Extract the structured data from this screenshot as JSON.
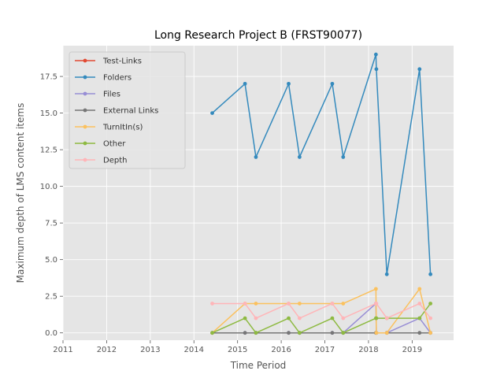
{
  "chart_data": {
    "type": "line",
    "title": "Long Research Project B (FRST90077)",
    "xlabel": "Time Period",
    "ylabel": "Maximum depth of LMS content items",
    "xlim": [
      2011,
      2019.95
    ],
    "ylim": [
      -0.5,
      19.6
    ],
    "xticks": [
      2011,
      2012,
      2013,
      2014,
      2015,
      2016,
      2017,
      2018,
      2019
    ],
    "xtick_labels": [
      "2011",
      "2012",
      "2013",
      "2014",
      "2015",
      "2016",
      "2017",
      "2018",
      "2019"
    ],
    "yticks": [
      0,
      2.5,
      5,
      7.5,
      10,
      12.5,
      15,
      17.5
    ],
    "ytick_labels": [
      "0.0",
      "2.5",
      "5.0",
      "7.5",
      "10.0",
      "12.5",
      "15.0",
      "17.5"
    ],
    "grid": true,
    "legend_position": "top-left",
    "x": [
      2014.42,
      2015.17,
      2015.42,
      2016.17,
      2016.42,
      2017.17,
      2017.42,
      2018.17,
      2018.18,
      2018.42,
      2019.17,
      2019.42,
      2019.43
    ],
    "series": [
      {
        "name": "Test-Links",
        "color": "#e24a33",
        "values": [
          null,
          null,
          null,
          null,
          null,
          null,
          null,
          null,
          null,
          null,
          null,
          null,
          null
        ]
      },
      {
        "name": "Folders",
        "color": "#348abd",
        "values": [
          15,
          17,
          12,
          17,
          12,
          17,
          12,
          19,
          18,
          4,
          18,
          4,
          null
        ]
      },
      {
        "name": "Files",
        "color": "#988ed5",
        "values": [
          0,
          0,
          0,
          0,
          0,
          0,
          0,
          2,
          0,
          0,
          1,
          0,
          null
        ]
      },
      {
        "name": "External Links",
        "color": "#777777",
        "values": [
          0,
          0,
          0,
          0,
          0,
          0,
          0,
          0,
          0,
          0,
          0,
          0,
          null
        ]
      },
      {
        "name": "TurnItIn(s)",
        "color": "#fbc15e",
        "values": [
          0,
          2,
          2,
          2,
          2,
          2,
          2,
          3,
          0,
          0,
          3,
          0,
          null
        ]
      },
      {
        "name": "Other",
        "color": "#8eba42",
        "values": [
          0,
          1,
          0,
          1,
          0,
          1,
          0,
          1,
          1,
          1,
          1,
          2,
          null
        ]
      },
      {
        "name": "Depth",
        "color": "#ffb5b8",
        "values": [
          2,
          2,
          1,
          2,
          1,
          2,
          1,
          2,
          2,
          1,
          2,
          1,
          null
        ]
      }
    ]
  }
}
